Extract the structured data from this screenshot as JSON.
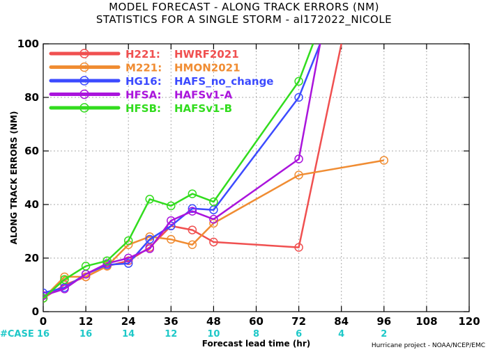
{
  "chart_data": {
    "type": "line",
    "title_lines": [
      "MODEL FORECAST - ALONG TRACK ERRORS (NM)",
      "STATISTICS FOR A SINGLE STORM - al172022_NICOLE"
    ],
    "xlabel": "Forecast lead time (hr)",
    "ylabel": "ALONG TRACK ERRORS (NM)",
    "xlim": [
      0,
      120
    ],
    "ylim": [
      0,
      100
    ],
    "x_ticks": [
      0,
      12,
      24,
      36,
      48,
      60,
      72,
      84,
      96,
      108,
      120
    ],
    "y_ticks": [
      0,
      20,
      40,
      60,
      80,
      100
    ],
    "grid": true,
    "legend_position": "top-left",
    "case_label": "#CASE",
    "case_counts": [
      {
        "x": 0,
        "n": "16"
      },
      {
        "x": 12,
        "n": "16"
      },
      {
        "x": 24,
        "n": "14"
      },
      {
        "x": 36,
        "n": "12"
      },
      {
        "x": 48,
        "n": "10"
      },
      {
        "x": 60,
        "n": "8"
      },
      {
        "x": 72,
        "n": "6"
      },
      {
        "x": 84,
        "n": "4"
      },
      {
        "x": 96,
        "n": "2"
      }
    ],
    "series": [
      {
        "code": "H221:",
        "name": "HWRF2021",
        "color": "#f05050",
        "x": [
          0,
          6,
          12,
          18,
          24,
          30,
          36,
          42,
          48,
          72,
          84
        ],
        "y": [
          5,
          10,
          13,
          17,
          19,
          24,
          32,
          30.5,
          26,
          24,
          100
        ]
      },
      {
        "code": "M221:",
        "name": "HMON2021",
        "color": "#f08c32",
        "x": [
          0,
          6,
          12,
          18,
          24,
          30,
          36,
          42,
          48,
          72,
          96
        ],
        "y": [
          5,
          13,
          13,
          17,
          25,
          28,
          27,
          25,
          33,
          51,
          56.5
        ]
      },
      {
        "code": "HG16:",
        "name": "HAFS_no_change",
        "color": "#3c4bff",
        "x": [
          0,
          6,
          12,
          18,
          24,
          30,
          36,
          42,
          48,
          72,
          78
        ],
        "y": [
          7,
          9,
          14,
          17.5,
          18,
          27,
          32,
          38.5,
          38,
          80,
          100
        ]
      },
      {
        "code": "HFSA:",
        "name": "HAFSv1-A",
        "color": "#aa14dc",
        "x": [
          0,
          6,
          12,
          18,
          24,
          30,
          36,
          42,
          48,
          72,
          78
        ],
        "y": [
          6,
          8.5,
          14,
          18,
          20,
          23.5,
          34,
          37.5,
          34.5,
          57,
          100
        ]
      },
      {
        "code": "HFSB:",
        "name": "HAFSv1-B",
        "color": "#32dc1e",
        "x": [
          0,
          6,
          12,
          18,
          24,
          30,
          36,
          42,
          48,
          72,
          76
        ],
        "y": [
          5,
          12,
          17,
          19,
          26.5,
          42,
          39.5,
          44,
          41,
          86,
          100
        ]
      }
    ]
  },
  "footer": {
    "credit": "Hurricane project - NOAA/NCEP/EMC"
  }
}
